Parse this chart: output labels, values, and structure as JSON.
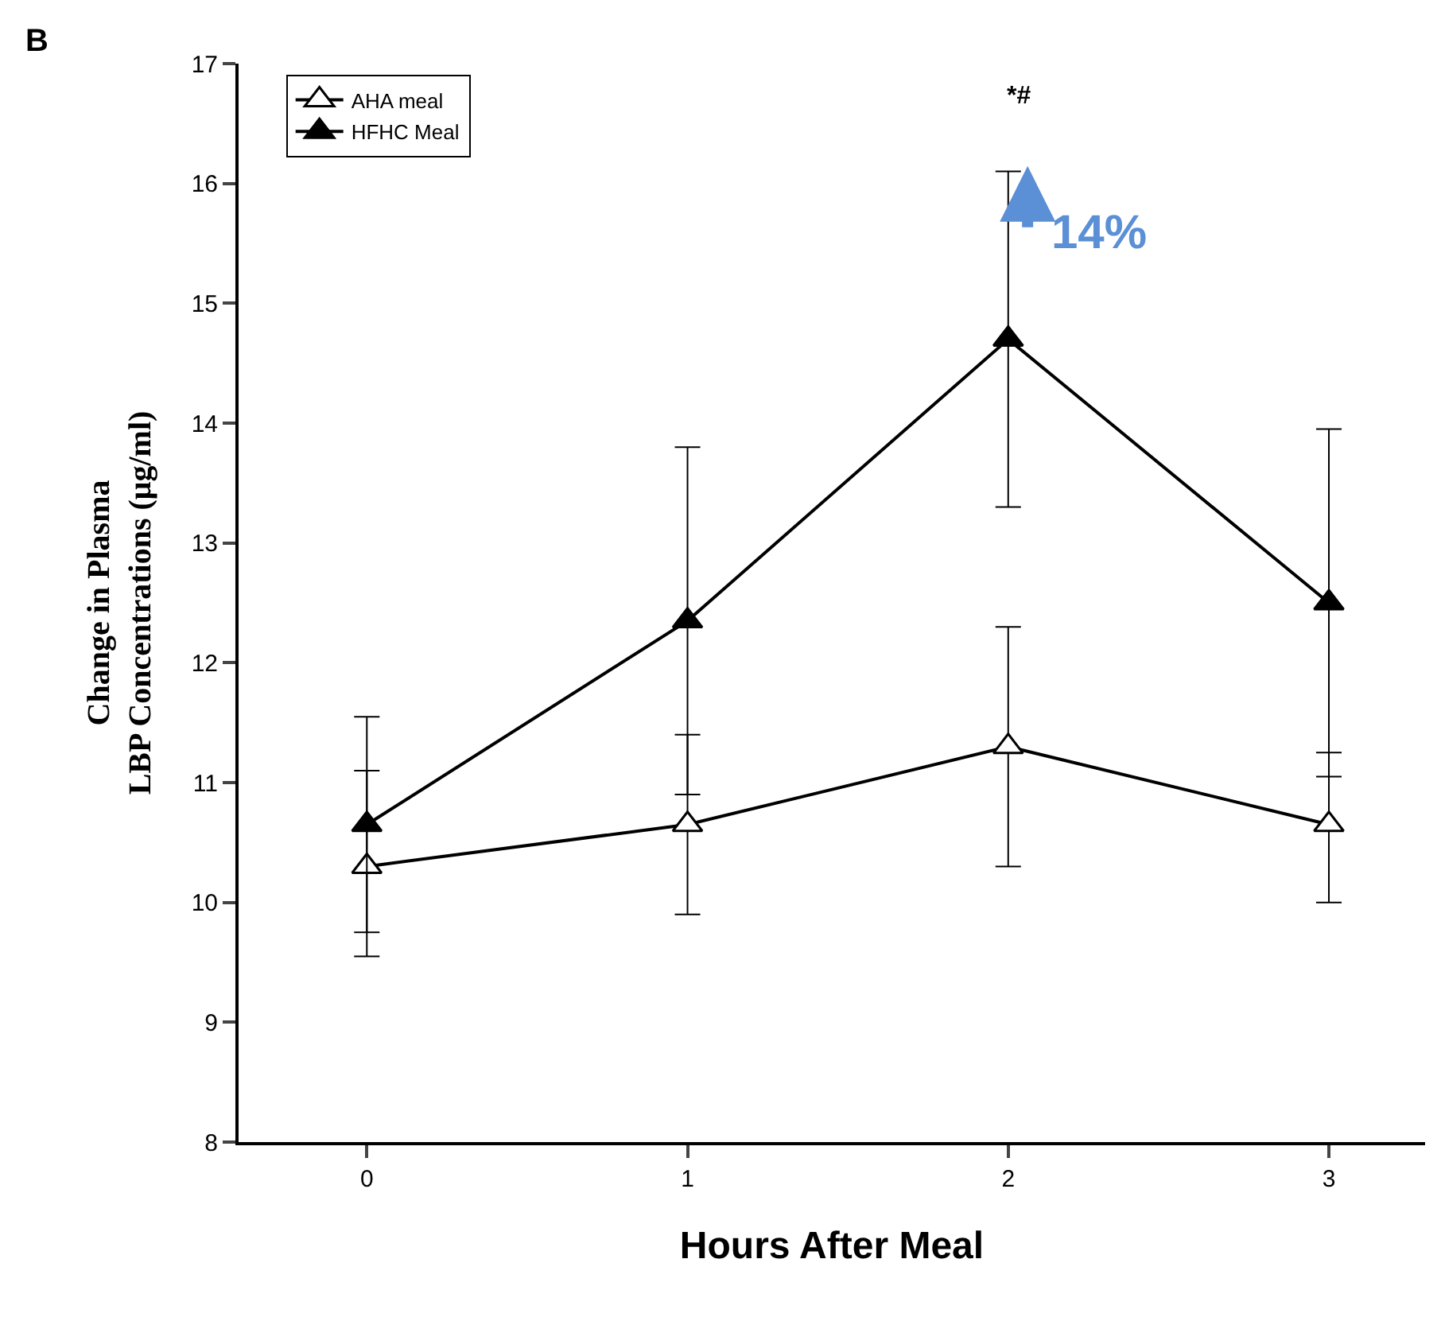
{
  "chart_data": {
    "type": "line",
    "xlabel": "Hours After Meal",
    "ylabel": "Change in Plasma\nLBP Concentrations (μg/ml)",
    "x": [
      0,
      1,
      2,
      3
    ],
    "series": [
      {
        "name": "AHA meal",
        "color": "#000000",
        "values": [
          10.3,
          10.65,
          11.3,
          10.65
        ],
        "errors": [
          [
            9.55,
            11.1
          ],
          [
            9.9,
            11.4
          ],
          [
            10.3,
            12.3
          ],
          [
            10.0,
            11.25
          ]
        ]
      },
      {
        "name": "HFHC Meal",
        "color": "#000000",
        "values": [
          10.65,
          12.35,
          14.7,
          12.5
        ],
        "errors": [
          [
            9.75,
            11.55
          ],
          [
            10.9,
            13.8
          ],
          [
            13.3,
            16.1
          ],
          [
            11.05,
            13.95
          ]
        ]
      }
    ],
    "xlim": [
      -0.4,
      3.3
    ],
    "xticks": [
      0,
      1,
      2,
      3
    ],
    "ylim": [
      8,
      17
    ],
    "yticks": [
      8,
      9,
      10,
      11,
      12,
      13,
      14,
      15,
      16,
      17
    ],
    "annotations": [
      "B",
      "*#",
      "14%"
    ],
    "marker": "triangle",
    "line_style": "solid",
    "legend": "top left"
  }
}
